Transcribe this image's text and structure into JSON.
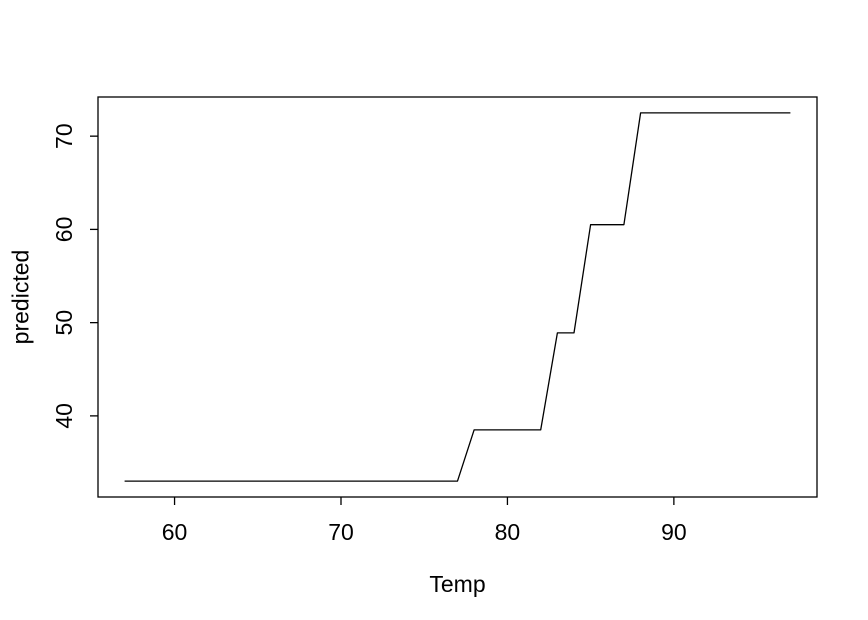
{
  "chart_data": {
    "type": "line",
    "title": "",
    "xlabel": "Temp",
    "ylabel": "predicted",
    "x_ticks": [
      60,
      70,
      80,
      90
    ],
    "y_ticks": [
      40,
      50,
      60,
      70
    ],
    "xlim": [
      55.4,
      98.6
    ],
    "ylim": [
      31.3,
      74.2
    ],
    "grid": false,
    "legend": null,
    "line_color": "#000000",
    "frame_color": "#000000",
    "background": "#ffffff",
    "series": [
      {
        "name": "predicted",
        "x": [
          57,
          77,
          78,
          82,
          83,
          84,
          85,
          87,
          88,
          97
        ],
        "y": [
          33.0,
          33.0,
          38.5,
          38.5,
          48.9,
          48.9,
          60.5,
          60.5,
          72.5,
          72.5
        ]
      }
    ]
  }
}
